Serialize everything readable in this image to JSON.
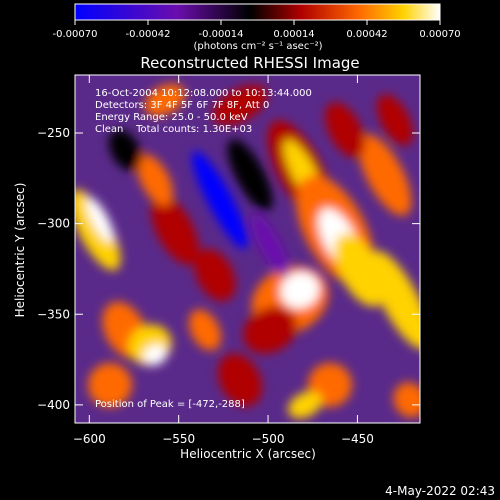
{
  "colorbar": {
    "tick_labels": [
      "-0.00070",
      "-0.00042",
      "-0.00014",
      "0.00014",
      "0.00042",
      "0.00070"
    ],
    "units_text": "(photons cm⁻² s⁻¹ asec⁻²)",
    "palette": [
      "#0000ff",
      "#6a0dad",
      "#000000",
      "#b00000",
      "#ff6a00",
      "#ffd200",
      "#ffffff"
    ]
  },
  "title": "Reconstructed RHESSI Image",
  "info": {
    "time_range": "16-Oct-2004 10:12:08.000 to 10:13:44.000",
    "detectors": "Detectors: 3F 4F 5F 6F 7F 8F, Att 0",
    "energy": "Energy Range: 25.0 - 50.0 keV",
    "algorithm": "Clean    Total counts: 1.30E+03",
    "peak": "Position of Peak = [-472,-288]"
  },
  "axes": {
    "xlabel": "Heliocentric X (arcsec)",
    "ylabel": "Heliocentric Y (arcsec)",
    "xticks": [
      "-600",
      "-550",
      "-500",
      "-450"
    ],
    "yticks": [
      "-250",
      "-300",
      "-350",
      "-400"
    ],
    "xlim": [
      -608,
      -415
    ],
    "ylim": [
      -410,
      -218
    ]
  },
  "footer_timestamp": "4-May-2022 02:43"
}
